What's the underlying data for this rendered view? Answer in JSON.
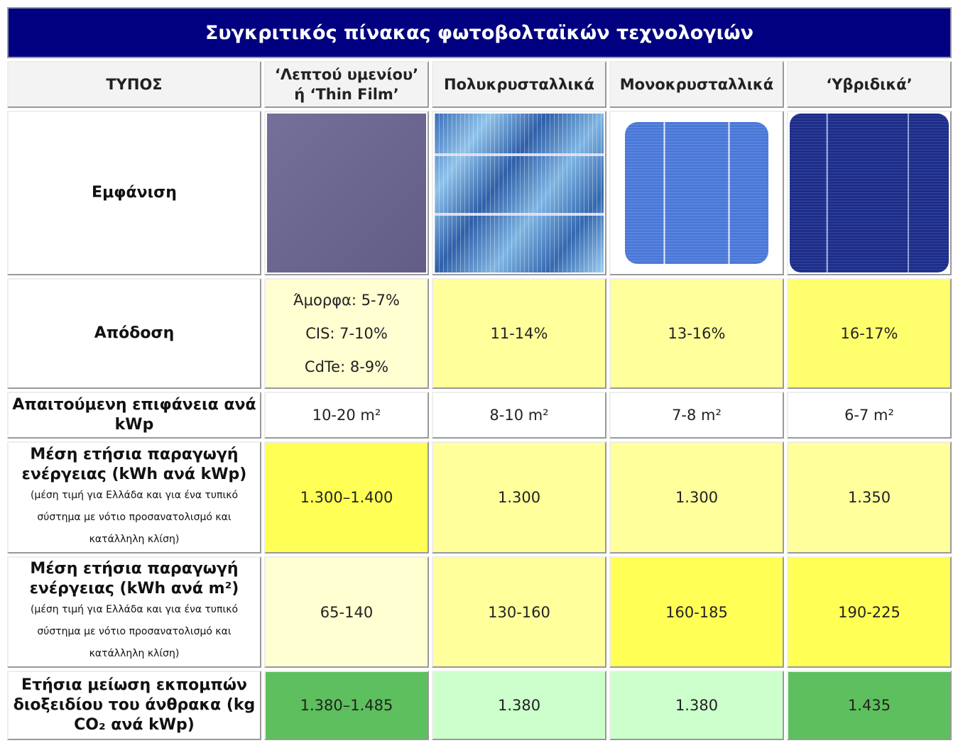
{
  "title": "Συγκριτικός πίνακας φωτοβολταϊκών τεχνολογιών",
  "table": {
    "header": [
      "ΤΥΠΟΣ",
      "‘Λεπτού υμενίου’ ή ‘Thin Film’",
      "Πολυκρυσταλλικά",
      "Μονοκρυσταλλικά",
      "‘Υβριδικά’"
    ],
    "rows": [
      {
        "label": "Εμφάνιση"
      },
      {
        "label": "Απόδοση",
        "cells": [
          [
            "Άμορφα: 5-7%",
            "CIS: 7-10%",
            "CdTe: 8-9%"
          ],
          "11-14%",
          "13-16%",
          "16-17%"
        ]
      },
      {
        "label": "Απαιτούμενη επιφάνεια ανά kWp",
        "cells": [
          "10-20 m²",
          "8-10 m²",
          "7-8 m²",
          "6-7 m²"
        ]
      },
      {
        "label": "Μέση ετήσια παραγωγή ενέργειας (kWh ανά kWp)",
        "note": "(μέση τιμή για Ελλάδα και για ένα τυπικό σύστημα με νότιο προσανατολισμό και κατάλληλη κλίση)",
        "cells": [
          "1.300–1.400",
          "1.300",
          "1.300",
          "1.350"
        ]
      },
      {
        "label": "Μέση ετήσια παραγωγή ενέργειας (kWh ανά m²)",
        "note": "(μέση τιμή για Ελλάδα και για ένα τυπικό σύστημα με νότιο προσανατολισμό και κατάλληλη κλίση)",
        "cells": [
          "65-140",
          "130-160",
          "160-185",
          "190-225"
        ]
      },
      {
        "label": "Ετήσια μείωση εκπομπών διοξειδίου του άνθρακα (kg CO₂ ανά kWp)",
        "cells": [
          "1.380–1.485",
          "1.380",
          "1.380",
          "1.435"
        ]
      }
    ]
  }
}
